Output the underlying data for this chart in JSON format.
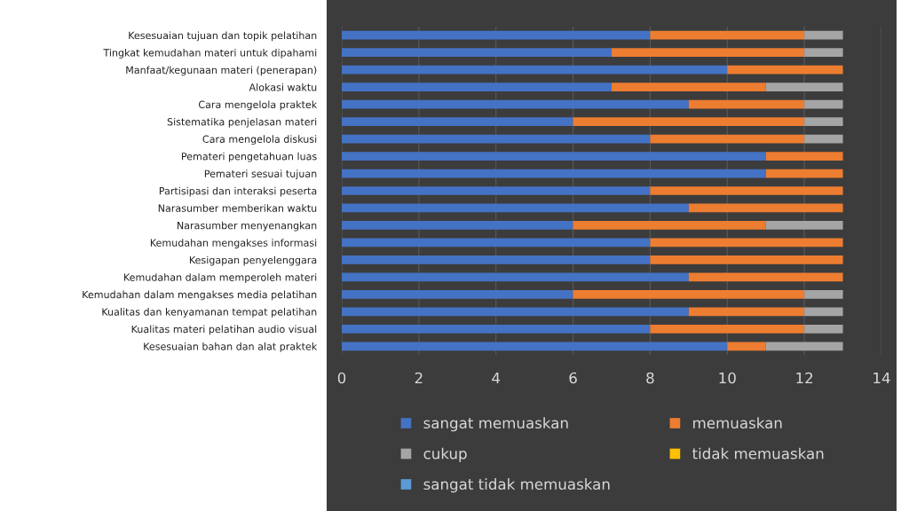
{
  "chart_data": {
    "type": "bar",
    "orientation": "horizontal",
    "stacked": true,
    "categories": [
      "Kesesuaian tujuan dan topik pelatihan",
      "Tingkat kemudahan materi untuk dipahami",
      "Manfaat/kegunaan materi (penerapan)",
      "Alokasi waktu",
      "Cara mengelola praktek",
      "Sistematika penjelasan materi",
      "Cara mengelola diskusi",
      "Pemateri pengetahuan luas",
      "Pemateri sesuai tujuan",
      "Partisipasi dan interaksi peserta",
      "Narasumber memberikan waktu",
      "Narasumber menyenangkan",
      "Kemudahan mengakses informasi",
      "Kesigapan penyelenggara",
      "Kemudahan dalam memperoleh materi",
      "Kemudahan dalam mengakses media pelatihan",
      "Kualitas dan kenyamanan tempat pelatihan",
      "Kualitas materi pelatihan audio visual",
      "Kesesuaian bahan dan alat praktek"
    ],
    "series": [
      {
        "name": "sangat memuaskan",
        "color": "#4472c4",
        "values": [
          8,
          7,
          10,
          7,
          9,
          6,
          8,
          11,
          11,
          8,
          9,
          6,
          8,
          8,
          9,
          6,
          9,
          8,
          10
        ]
      },
      {
        "name": "memuaskan",
        "color": "#ed7d31",
        "values": [
          4,
          5,
          3,
          4,
          3,
          6,
          4,
          2,
          2,
          5,
          4,
          5,
          5,
          5,
          4,
          6,
          3,
          4,
          1
        ]
      },
      {
        "name": "cukup",
        "color": "#a5a5a5",
        "values": [
          1,
          1,
          0,
          2,
          1,
          1,
          1,
          0,
          0,
          0,
          0,
          2,
          0,
          0,
          0,
          1,
          1,
          1,
          2
        ]
      },
      {
        "name": "tidak memuaskan",
        "color": "#ffc000",
        "values": [
          0,
          0,
          0,
          0,
          0,
          0,
          0,
          0,
          0,
          0,
          0,
          0,
          0,
          0,
          0,
          0,
          0,
          0,
          0
        ]
      },
      {
        "name": "sangat tidak memuaskan",
        "color": "#5b9bd5",
        "values": [
          0,
          0,
          0,
          0,
          0,
          0,
          0,
          0,
          0,
          0,
          0,
          0,
          0,
          0,
          0,
          0,
          0,
          0,
          0
        ]
      }
    ],
    "xlim": [
      0,
      14
    ],
    "xticks": [
      0,
      2,
      4,
      6,
      8,
      10,
      12,
      14
    ],
    "grid": "x",
    "legend": "bottom"
  }
}
